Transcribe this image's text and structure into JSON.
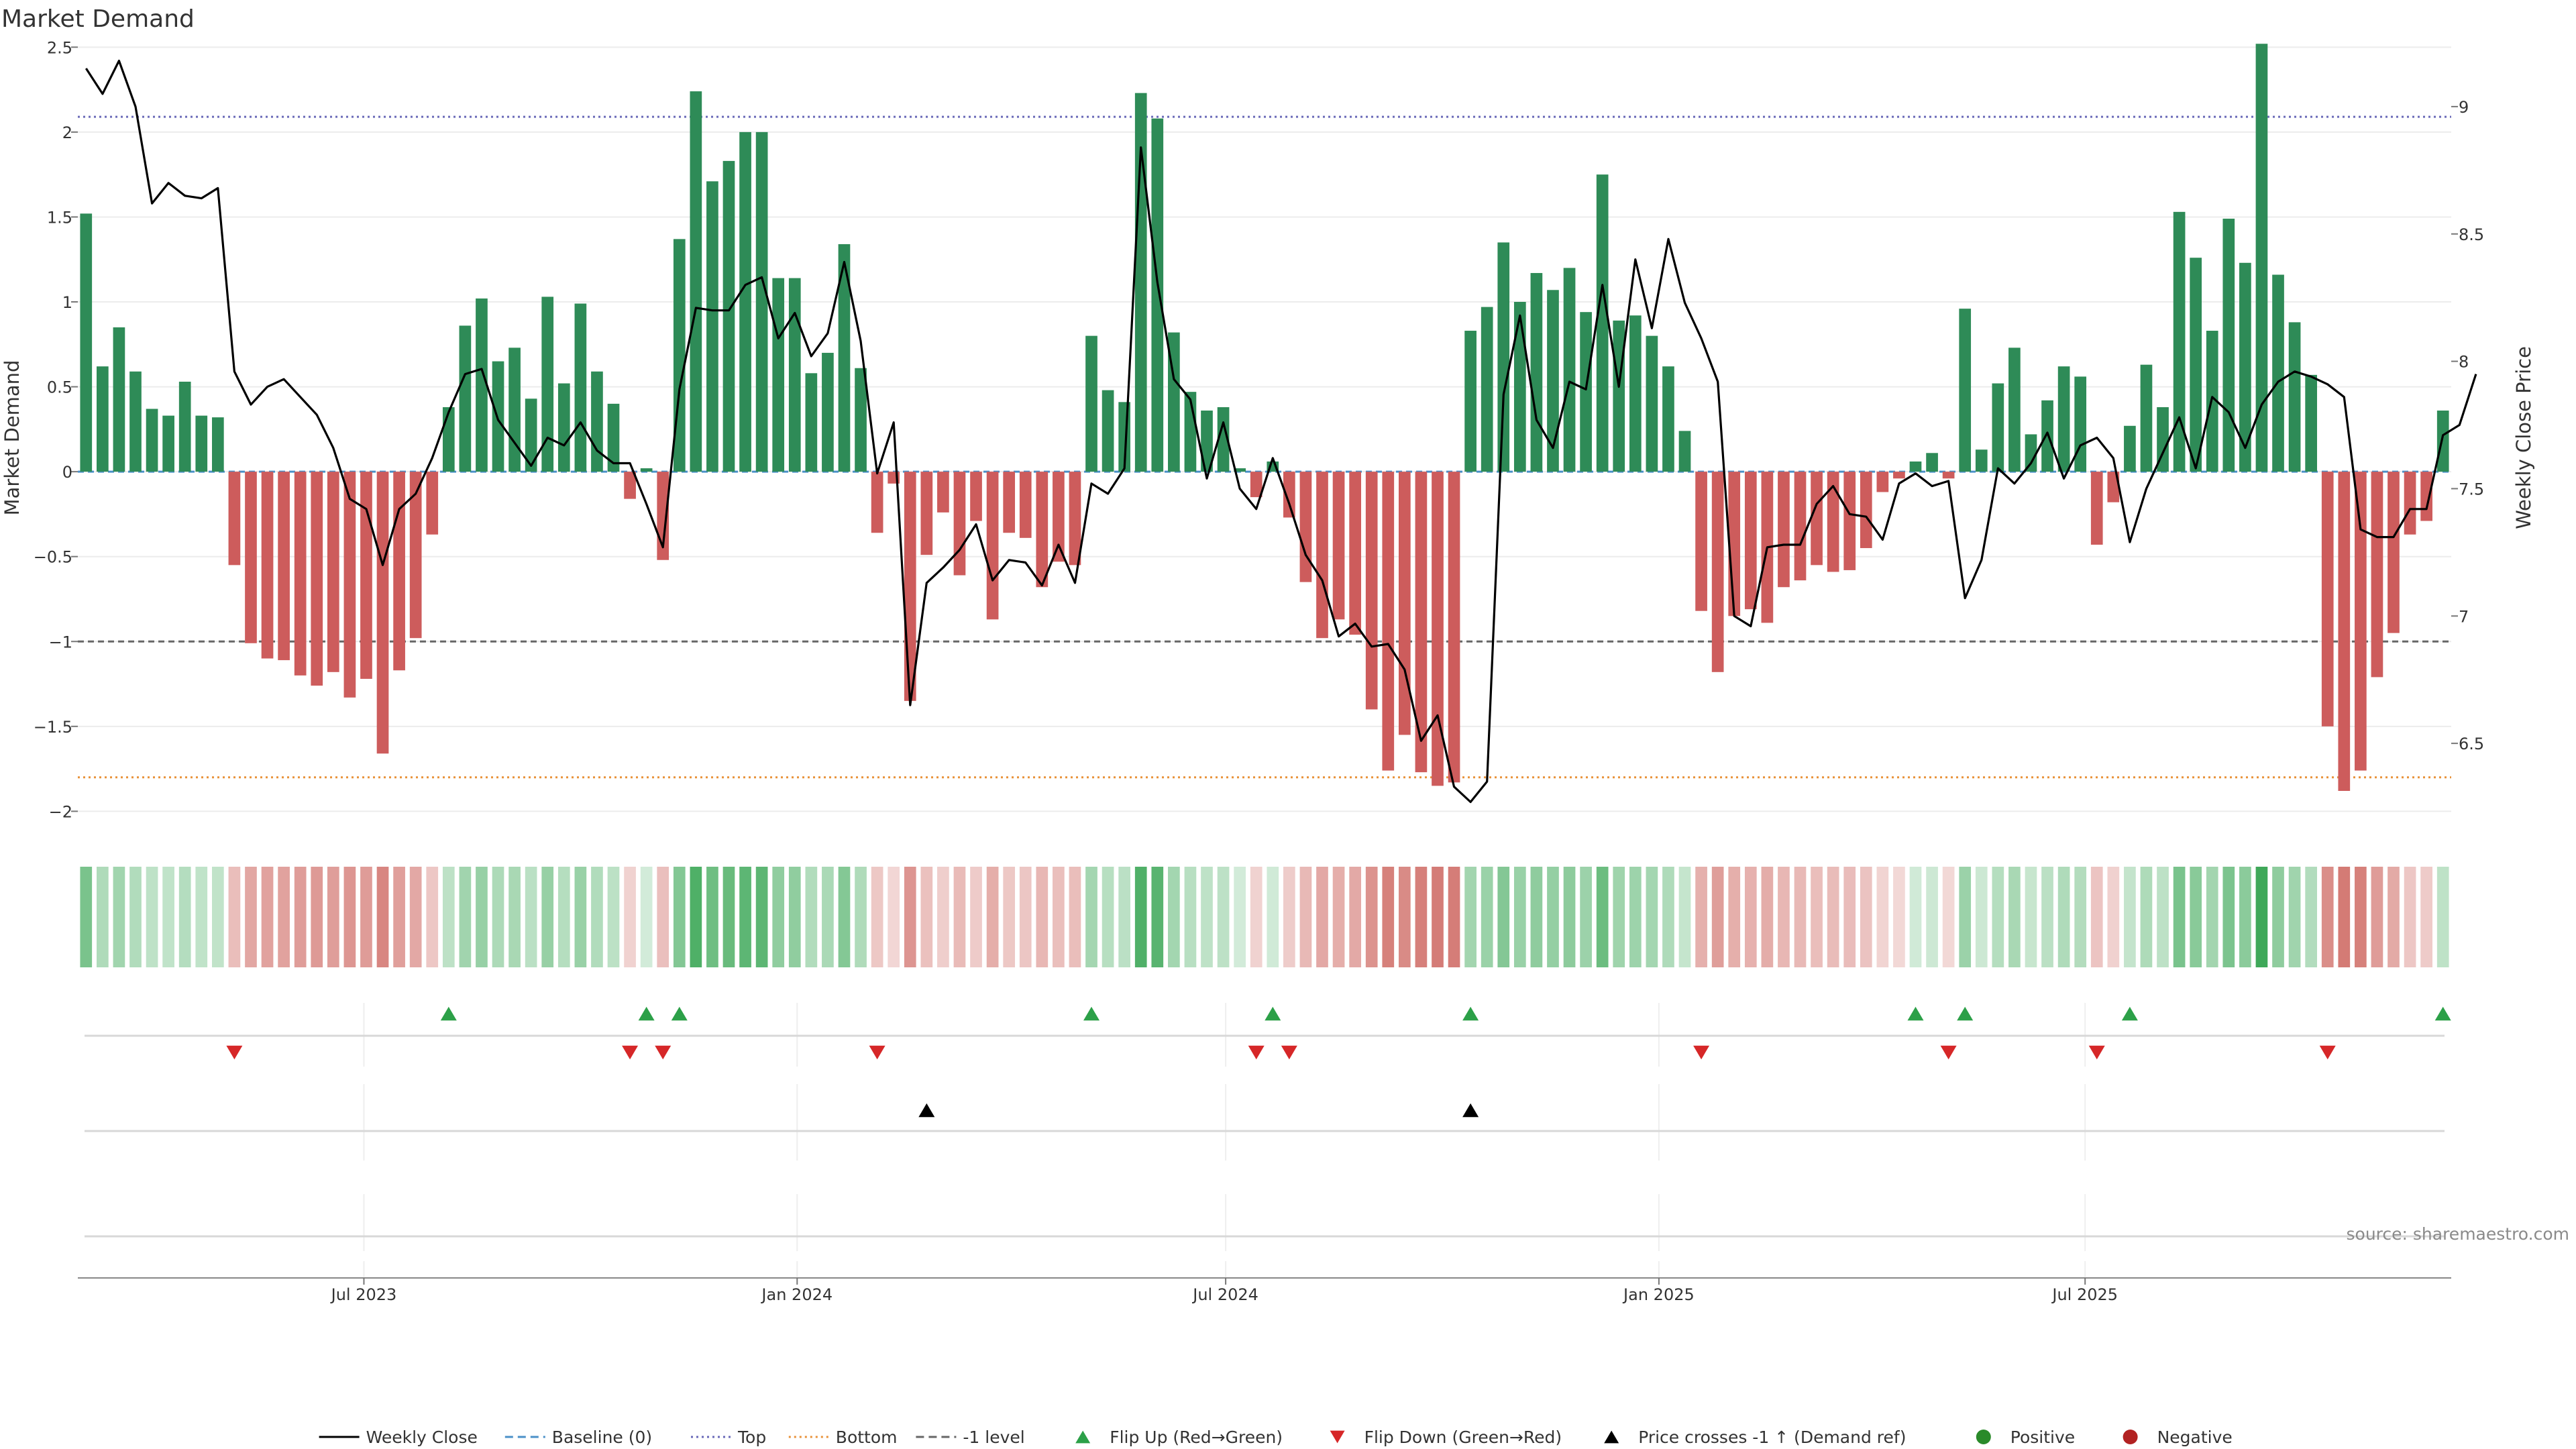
{
  "title": "Market Demand",
  "source": "source: sharemaestro.com",
  "chart_data": {
    "type": "bar",
    "title": "Market Demand",
    "ylabel": "Market Demand",
    "y2label": "Weekly Close Price",
    "ylim": [
      -2.2,
      2.6
    ],
    "y2lim": [
      6.1,
      9.3
    ],
    "yticks": [
      2.5,
      2,
      1.5,
      1,
      0.5,
      0,
      -0.5,
      -1,
      -1.5,
      -2
    ],
    "yticks_labels": [
      "2.5",
      "2",
      "1.5",
      "1",
      "0.5",
      "0",
      "−0.5",
      "−1",
      "−1.5",
      "−2"
    ],
    "y2ticks": [
      9,
      8.5,
      8,
      7.5,
      7,
      6.5
    ],
    "y2ticks_labels": [
      "9",
      "8.5",
      "8",
      "7.5",
      "7",
      "6.5"
    ],
    "x_start": "2023-03-05",
    "x_end": "2025-10-26",
    "week_step_days": 7,
    "xticks": [
      {
        "date": "2023-07-01",
        "label": "Jul 2023"
      },
      {
        "date": "2024-01-01",
        "label": "Jan 2024"
      },
      {
        "date": "2024-07-01",
        "label": "Jul 2024"
      },
      {
        "date": "2025-01-01",
        "label": "Jan 2025"
      },
      {
        "date": "2025-07-01",
        "label": "Jul 2025"
      }
    ],
    "reference_lines": [
      {
        "name": "Top",
        "value": 2.09,
        "color": "#6a6ab8",
        "style": "dotted"
      },
      {
        "name": "Bottom",
        "value": -1.8,
        "color": "#e8923a",
        "style": "dotted"
      },
      {
        "name": "-1 level",
        "value": -1.0,
        "color": "#666666",
        "style": "dashed"
      },
      {
        "name": "Baseline (0)",
        "value": 0,
        "color": "#4a90c8",
        "style": "dashed"
      }
    ],
    "colors": {
      "positive": "#2e8b57",
      "negative": "#cd5c5c",
      "close": "#000000",
      "flip_up": "#2ca048",
      "flip_down": "#d62728",
      "cross": "#000000",
      "legend_positive": "#2a8a2a",
      "legend_negative": "#b22222"
    },
    "demand": [
      1.52,
      0.62,
      0.85,
      0.59,
      0.37,
      0.33,
      0.53,
      0.33,
      0.32,
      -0.55,
      -1.01,
      -1.1,
      -1.11,
      -1.2,
      -1.26,
      -1.18,
      -1.33,
      -1.22,
      -1.66,
      -1.17,
      -0.98,
      -0.37,
      0.38,
      0.86,
      1.02,
      0.65,
      0.73,
      0.43,
      1.03,
      0.52,
      0.99,
      0.59,
      0.4,
      -0.16,
      0.02,
      -0.52,
      1.37,
      2.24,
      1.71,
      1.83,
      2.0,
      2.0,
      1.14,
      1.14,
      0.58,
      0.7,
      1.34,
      0.61,
      -0.36,
      -0.07,
      -1.35,
      -0.49,
      -0.24,
      -0.61,
      -0.29,
      -0.87,
      -0.36,
      -0.39,
      -0.68,
      -0.53,
      -0.55,
      0.8,
      0.48,
      0.41,
      2.23,
      2.08,
      0.82,
      0.47,
      0.36,
      0.38,
      0.02,
      -0.15,
      0.06,
      -0.27,
      -0.65,
      -0.98,
      -0.87,
      -0.96,
      -1.4,
      -1.76,
      -1.55,
      -1.77,
      -1.85,
      -1.83,
      0.83,
      0.97,
      1.35,
      1.0,
      1.17,
      1.07,
      1.2,
      0.94,
      1.75,
      0.89,
      0.92,
      0.8,
      0.62,
      0.24,
      -0.82,
      -1.18,
      -0.85,
      -0.81,
      -0.89,
      -0.68,
      -0.64,
      -0.55,
      -0.59,
      -0.58,
      -0.45,
      -0.12,
      -0.04,
      0.06,
      0.11,
      -0.04,
      0.96,
      0.13,
      0.52,
      0.73,
      0.22,
      0.42,
      0.62,
      0.56,
      -0.43,
      -0.18,
      0.27,
      0.63,
      0.38,
      1.53,
      1.26,
      0.83,
      1.49,
      1.23,
      2.52,
      1.16,
      0.88,
      0.57,
      -1.5,
      -1.88,
      -1.76,
      -1.21,
      -0.95,
      -0.37,
      -0.29,
      0.36
    ],
    "close": [
      9.15,
      9.05,
      9.18,
      9.0,
      8.62,
      8.7,
      8.65,
      8.64,
      8.68,
      7.96,
      7.83,
      7.9,
      7.93,
      7.86,
      7.79,
      7.66,
      7.46,
      7.42,
      7.2,
      7.42,
      7.48,
      7.62,
      7.8,
      7.95,
      7.97,
      7.77,
      7.68,
      7.59,
      7.7,
      7.67,
      7.76,
      7.65,
      7.6,
      7.6,
      7.44,
      7.27,
      7.89,
      8.21,
      8.2,
      8.2,
      8.3,
      8.33,
      8.09,
      8.19,
      8.02,
      8.11,
      8.39,
      8.08,
      7.56,
      7.76,
      6.65,
      7.13,
      7.19,
      7.26,
      7.36,
      7.14,
      7.22,
      7.21,
      7.12,
      7.28,
      7.13,
      7.52,
      7.48,
      7.58,
      8.84,
      8.31,
      7.93,
      7.85,
      7.54,
      7.76,
      7.5,
      7.42,
      7.62,
      7.44,
      7.24,
      7.14,
      6.92,
      6.97,
      6.88,
      6.89,
      6.79,
      6.51,
      6.61,
      6.33,
      6.27,
      6.35,
      7.87,
      8.18,
      7.77,
      7.66,
      7.92,
      7.89,
      8.3,
      7.9,
      8.4,
      8.13,
      8.48,
      8.23,
      8.09,
      7.92,
      7.0,
      6.96,
      7.27,
      7.28,
      7.28,
      7.44,
      7.51,
      7.4,
      7.39,
      7.3,
      7.52,
      7.56,
      7.51,
      7.53,
      7.07,
      7.22,
      7.58,
      7.52,
      7.6,
      7.72,
      7.54,
      7.67,
      7.7,
      7.62,
      7.29,
      7.5,
      7.64,
      7.78,
      7.58,
      7.86,
      7.8,
      7.66,
      7.83,
      7.92,
      7.96,
      7.94,
      7.91,
      7.86,
      7.34,
      7.31,
      7.31,
      7.42,
      7.42,
      7.71,
      7.75,
      7.95
    ],
    "flip_up": [
      22,
      34,
      36,
      61,
      72,
      84,
      111,
      114,
      124,
      143
    ],
    "flip_down": [
      9,
      33,
      35,
      48,
      71,
      73,
      98,
      113,
      122,
      136
    ],
    "crosses": [
      51,
      84
    ],
    "legend": [
      {
        "label": "Weekly Close",
        "kind": "line-solid",
        "color": "#000000"
      },
      {
        "label": "Baseline (0)",
        "kind": "line-dashed",
        "color": "#4a90c8"
      },
      {
        "label": "Top",
        "kind": "line-dotted",
        "color": "#6a6ab8"
      },
      {
        "label": "Bottom",
        "kind": "line-dotted",
        "color": "#e8923a"
      },
      {
        "label": "-1 level",
        "kind": "line-dashed",
        "color": "#666666"
      },
      {
        "label": "Flip Up (Red→Green)",
        "kind": "tri-up",
        "color": "#2ca048"
      },
      {
        "label": "Flip Down (Green→Red)",
        "kind": "tri-down",
        "color": "#d62728"
      },
      {
        "label": "Price crosses -1 ↑ (Demand ref)",
        "kind": "tri-up",
        "color": "#000000"
      },
      {
        "label": "Positive",
        "kind": "dot",
        "color": "#2a8a2a"
      },
      {
        "label": "Negative",
        "kind": "dot",
        "color": "#b22222"
      }
    ]
  }
}
